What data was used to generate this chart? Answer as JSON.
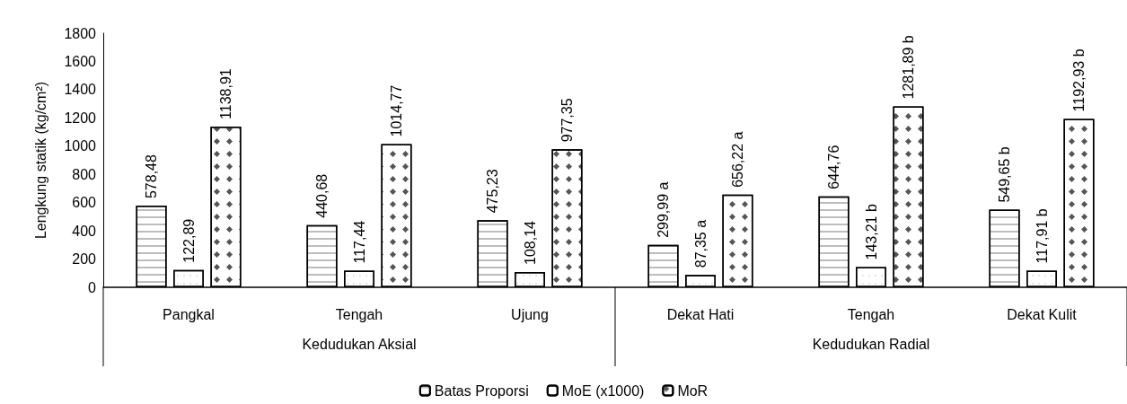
{
  "chart_data": {
    "type": "bar",
    "ylabel": "Lengkung statik (kg/cm²)",
    "categories": [
      "Pangkal",
      "Tengah",
      "Ujung",
      "Dekat Hati",
      "Tengah",
      "Dekat Kulit"
    ],
    "series": [
      {
        "name": "Batas Proporsi",
        "color": "#ffffff",
        "values": [
          578.48,
          440.68,
          475.23,
          299.99,
          644.76,
          549.65
        ],
        "value_labels": [
          "578,48",
          "440,68",
          "475,23",
          "299,99 a",
          "644,76",
          "549,65 b"
        ]
      },
      {
        "name": "MoE (x1000)",
        "color": "#ffffff",
        "values": [
          122.89,
          117.44,
          108.14,
          87.35,
          143.21,
          117.91
        ],
        "value_labels": [
          "122,89",
          "117,44",
          "108,14",
          "87,35 a",
          "143,21 b",
          "117,91 b"
        ]
      },
      {
        "name": "MoR",
        "color": "#ffffff",
        "values": [
          1138.91,
          1014.77,
          977.35,
          656.22,
          1281.89,
          1192.93
        ],
        "value_labels": [
          "1138,91",
          "1014,77",
          "977,35",
          "656,22 a",
          "1281,89 b",
          "1192,93 b"
        ]
      }
    ],
    "ylim": [
      0,
      1800
    ],
    "yticks": [
      0,
      200,
      400,
      600,
      800,
      1000,
      1200,
      1400,
      1600,
      1800
    ],
    "grid": false,
    "legend": "bottom",
    "annotations": [
      "Kedudukan Aksial",
      "Kedudukan Radial"
    ]
  }
}
